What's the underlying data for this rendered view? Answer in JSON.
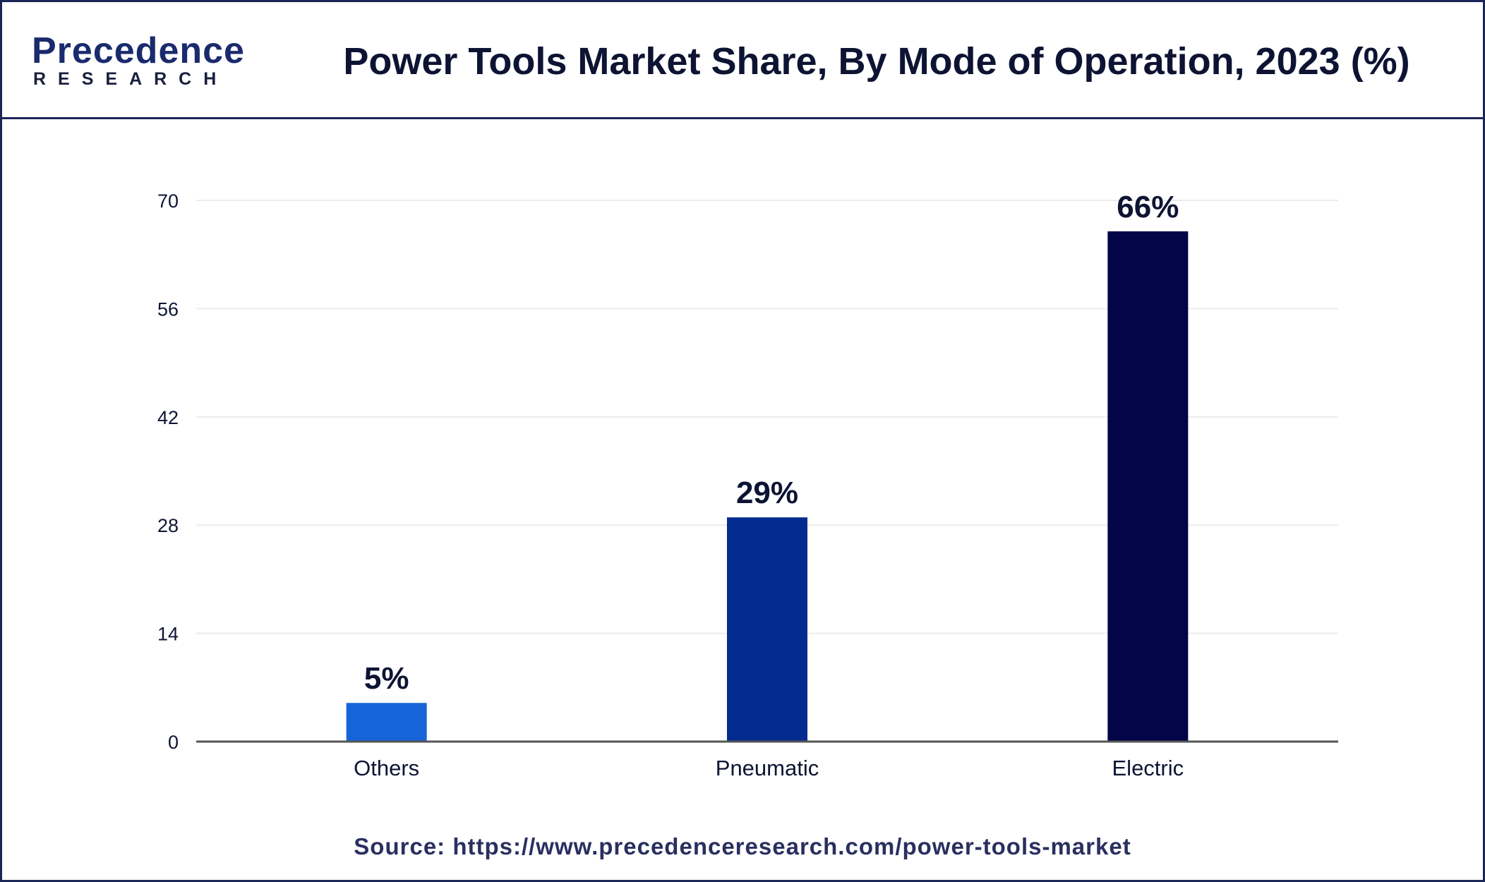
{
  "brand": {
    "logo_main": "Precedence",
    "logo_sub": "RESEARCH"
  },
  "header": {
    "title": "Power Tools Market Share, By Mode of Operation, 2023 (%)"
  },
  "footer": {
    "source": "Source: https://www.precedenceresearch.com/power-tools-market"
  },
  "colors": {
    "others": "#1565d8",
    "pneumatic": "#032b8f",
    "electric": "#020548",
    "axis": "#555555",
    "grid": "#ececec",
    "text": "#0d1433"
  },
  "chart_data": {
    "type": "bar",
    "title": "Power Tools Market Share, By Mode of Operation, 2023 (%)",
    "xlabel": "",
    "ylabel": "",
    "categories": [
      "Others",
      "Pneumatic",
      "Electric"
    ],
    "values": [
      5,
      29,
      66
    ],
    "value_labels": [
      "5%",
      "29%",
      "66%"
    ],
    "bar_colors": [
      "#1565d8",
      "#032b8f",
      "#020548"
    ],
    "ylim": [
      0,
      70
    ],
    "yticks": [
      0,
      14,
      28,
      42,
      56,
      70
    ],
    "grid": true,
    "legend": "none"
  }
}
